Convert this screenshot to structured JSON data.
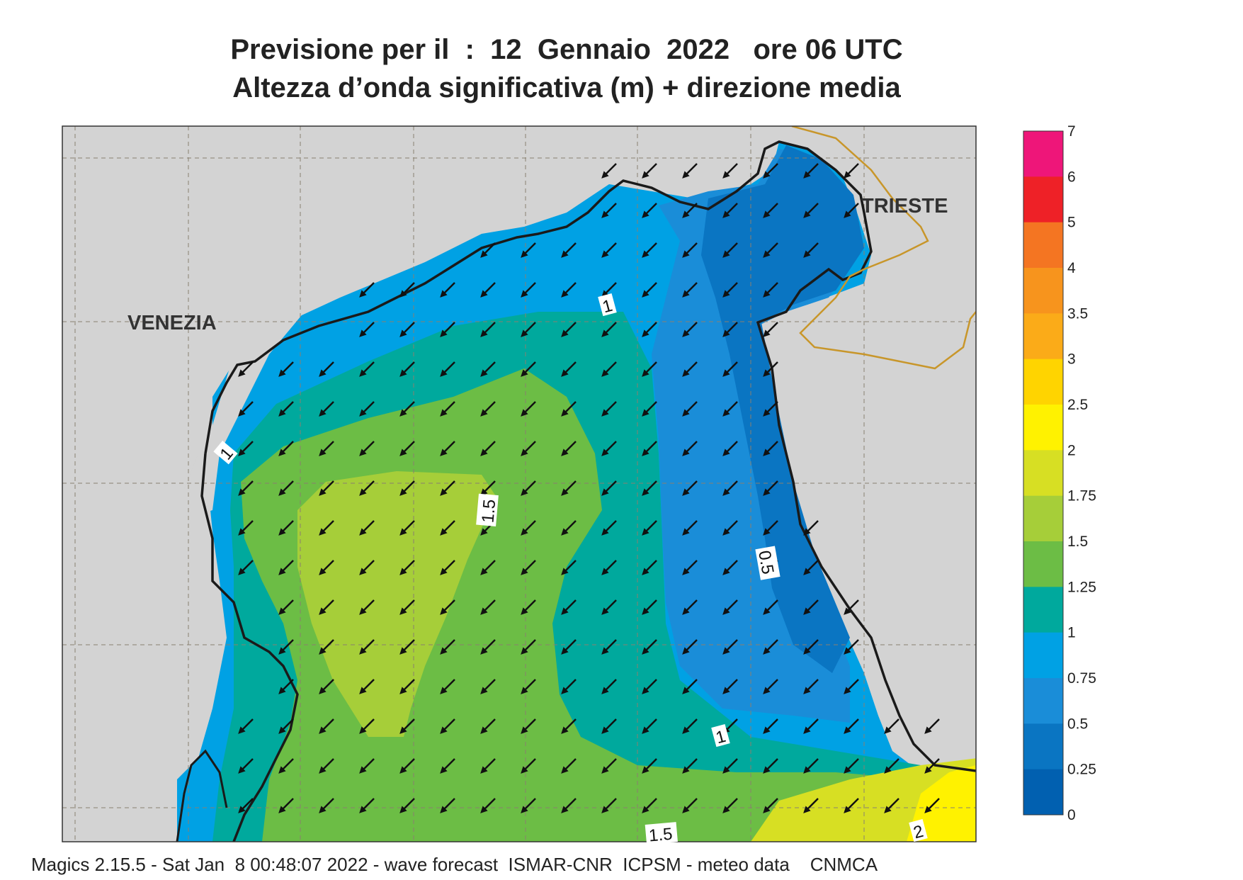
{
  "title_line1": "Previsione per il  :  12  Gennaio  2022   ore 06 UTC",
  "title_line2": "Altezza d’onda significativa (m) + direzione media",
  "cities": [
    {
      "name": "VENEZIA"
    },
    {
      "name": "TRIESTE"
    }
  ],
  "contour_labels": [
    "1",
    "1",
    "1.5",
    "0.5",
    "1",
    "1.5",
    "2"
  ],
  "legend": {
    "labels": [
      "7",
      "6",
      "5",
      "4",
      "3.5",
      "3",
      "2.5",
      "2",
      "1.75",
      "1.5",
      "1.25",
      "1",
      "0.75",
      "0.5",
      "0.25",
      "0"
    ],
    "colors": [
      "#ee1679",
      "#ee2127",
      "#f47522",
      "#f7941d",
      "#fbab18",
      "#ffd400",
      "#fff200",
      "#d7df23",
      "#a6ce39",
      "#6cbd45",
      "#00a99d",
      "#00a1e4",
      "#1a8dd8",
      "#0a75c2",
      "#0160b0"
    ]
  },
  "colors": {
    "land": "#d3d3d3",
    "sea_le_0.25": "#0a75c2",
    "sea_0.25_0.5": "#1a8dd8",
    "sea_0.5_0.75": "#1a8dd8",
    "sea_0.75_1": "#00a1e4",
    "sea_1_1.25": "#00a99d",
    "sea_1.25_1.5": "#6cbd45",
    "sea_1.5_1.75": "#a6ce39",
    "sea_1.75_2": "#d7df23",
    "sea_2_2.5": "#fff200",
    "border": "#c8962a"
  },
  "wave_direction": "towards south-west",
  "footer": "Magics 2.15.5 - Sat Jan  8 00:48:07 2022 - wave forecast  ISMAR-CNR  ICPSM - meteo data    CNMCA"
}
